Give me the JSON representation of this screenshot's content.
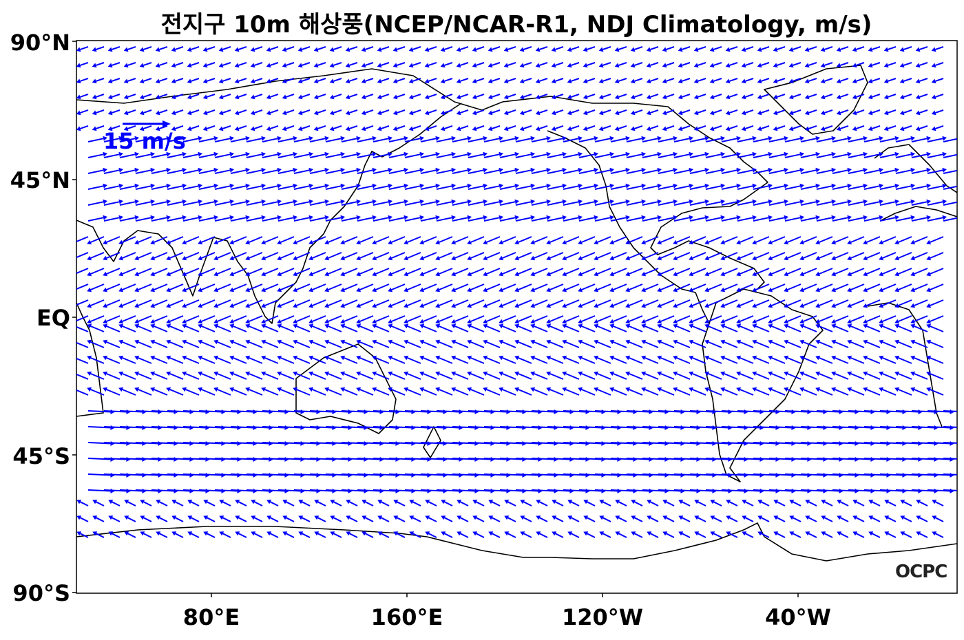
{
  "title": "전지구 10m 해상풍(NCEP/NCAR-R1, NDJ Climatology, m/s)",
  "map": {
    "lat_ticks": [
      "90°N",
      "45°N",
      "EQ",
      "45°S",
      "90°S"
    ],
    "lon_ticks": [
      "80°E",
      "160°E",
      "120°W",
      "40°W"
    ],
    "reference_vector_label": "15 m/s",
    "vector_color": "#0000ff",
    "coastline_color": "#000000",
    "logo_text": "OCPC"
  }
}
